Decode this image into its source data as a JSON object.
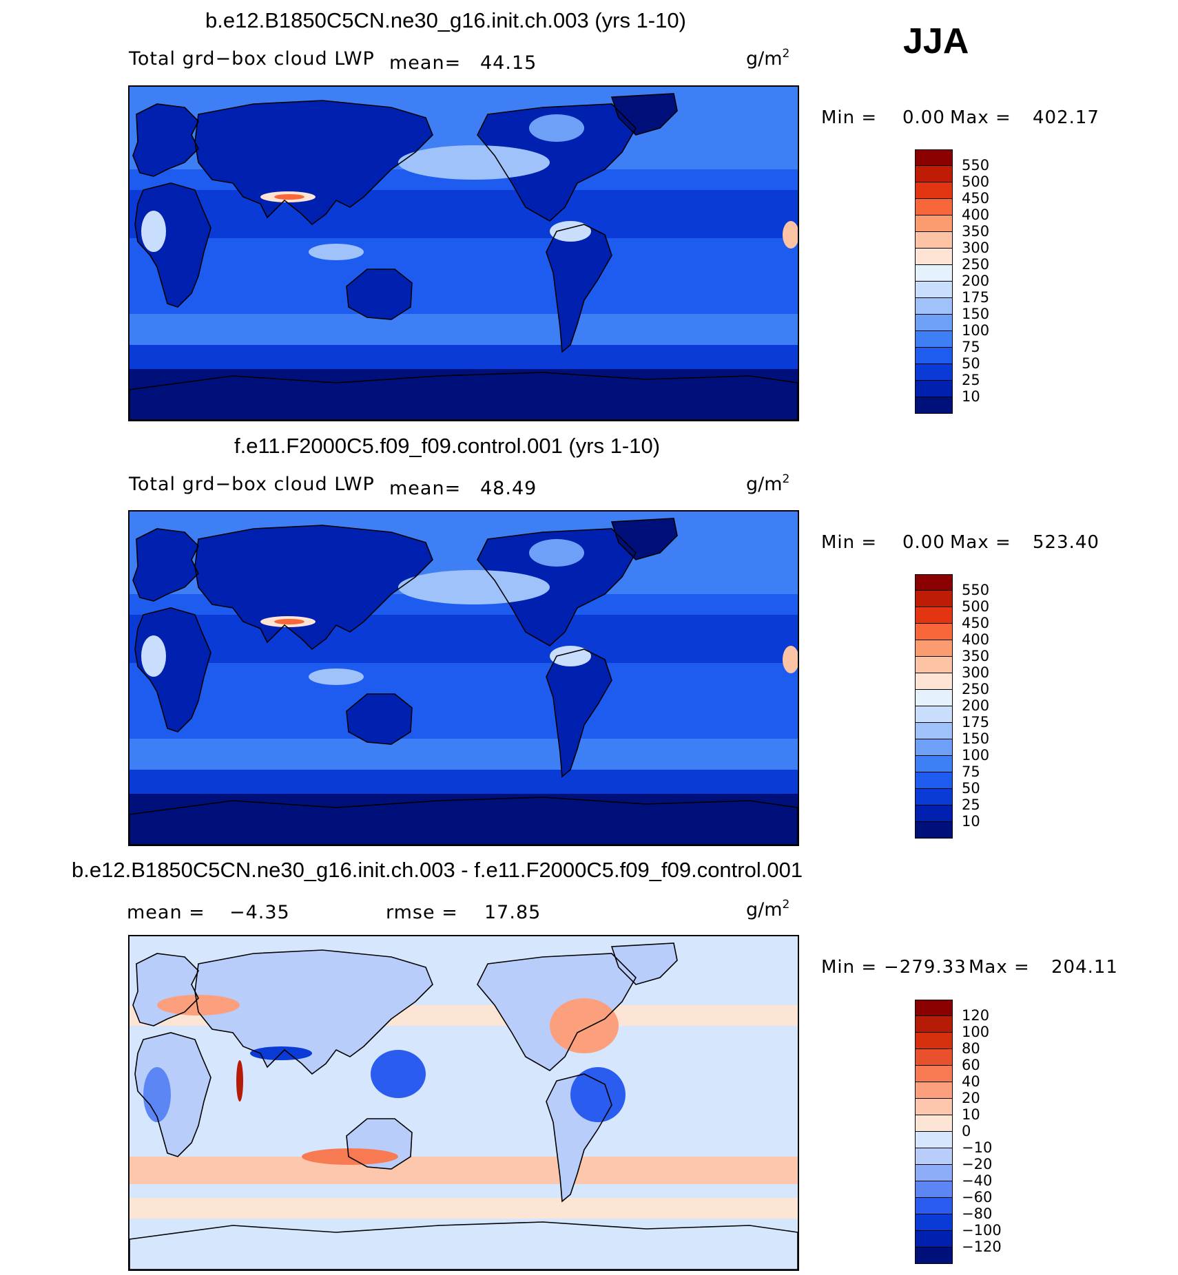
{
  "season": "JJA",
  "colors": {
    "ocean_dark": "#00147a",
    "land_line": "#000000",
    "abs_palette": [
      "#00107a",
      "#0020b0",
      "#0a3bd6",
      "#1e5cf0",
      "#3f7ff5",
      "#6fa0f8",
      "#9fc2fb",
      "#c9defd",
      "#e6f1fe",
      "#fde4d4",
      "#fcc3a5",
      "#fb9c70",
      "#f7673a",
      "#e33512",
      "#bf1c06",
      "#8b0000"
    ],
    "diff_palette": [
      "#00107a",
      "#0020b0",
      "#0a3bd6",
      "#2b5cf0",
      "#5b86f4",
      "#8dadf8",
      "#b9cdfb",
      "#d6e6fd",
      "#fde5d6",
      "#fcc7ad",
      "#fb9f7d",
      "#f87a53",
      "#e9502c",
      "#d7300f",
      "#b51b05",
      "#8b0000"
    ]
  },
  "panels": [
    {
      "title": "b.e12.B1850C5CN.ne30_g16.init.ch.003 (yrs 1-10)",
      "variable": "Total grd−box cloud LWP",
      "mean_label": "mean=",
      "mean_value": "44.15",
      "units": "g/m",
      "units_exp": "2",
      "min_label": "Min =",
      "min_value": "0.00",
      "max_label": "Max =",
      "max_value": "402.17",
      "colorbar": [
        "550",
        "500",
        "450",
        "400",
        "350",
        "300",
        "250",
        "200",
        "175",
        "150",
        "100",
        "75",
        "50",
        "25",
        "10"
      ]
    },
    {
      "title": "f.e11.F2000C5.f09_f09.control.001 (yrs 1-10)",
      "variable": "Total grd−box cloud LWP",
      "mean_label": "mean=",
      "mean_value": "48.49",
      "units": "g/m",
      "units_exp": "2",
      "min_label": "Min =",
      "min_value": "0.00",
      "max_label": "Max =",
      "max_value": "523.40",
      "colorbar": [
        "550",
        "500",
        "450",
        "400",
        "350",
        "300",
        "250",
        "200",
        "175",
        "150",
        "100",
        "75",
        "50",
        "25",
        "10"
      ]
    },
    {
      "title": "b.e12.B1850C5CN.ne30_g16.init.ch.003 - f.e11.F2000C5.f09_f09.control.001",
      "mean_label": "mean =",
      "mean_value": "−4.35",
      "rmse_label": "rmse =",
      "rmse_value": "17.85",
      "units": "g/m",
      "units_exp": "2",
      "min_label": "Min =",
      "min_value": "−279.33",
      "max_label": "Max =",
      "max_value": "204.11",
      "colorbar": [
        "120",
        "100",
        "80",
        "60",
        "40",
        "20",
        "10",
        "0",
        "−10",
        "−20",
        "−40",
        "−60",
        "−80",
        "−100",
        "−120"
      ]
    }
  ]
}
